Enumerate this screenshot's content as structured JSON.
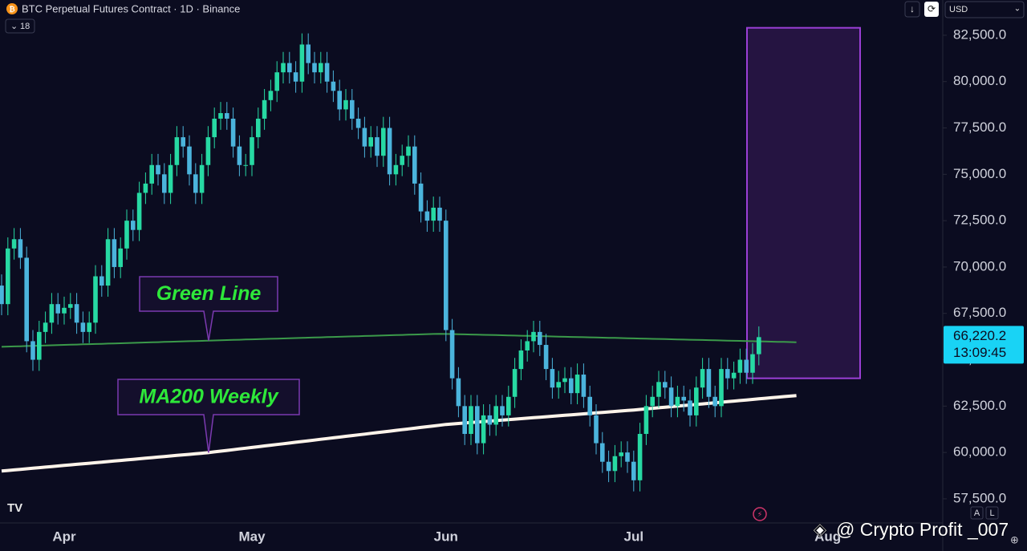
{
  "chart_data": {
    "type": "candlestick",
    "title": "BTC Perpetual Futures Contract · 1D · Binance",
    "interval_badge": "18",
    "currency": "USD",
    "watermark": "@ Crypto Profit _007",
    "scale_buttons": [
      "A",
      "L"
    ],
    "categories": [
      null,
      null,
      null,
      null,
      null,
      null,
      null,
      null,
      null,
      null,
      "Apr",
      null,
      null,
      null,
      null,
      null,
      null,
      null,
      null,
      null,
      null,
      null,
      null,
      null,
      null,
      null,
      null,
      null,
      null,
      null,
      null,
      null,
      null,
      null,
      null,
      null,
      null,
      null,
      null,
      null,
      "May",
      null,
      null,
      null,
      null,
      null,
      null,
      null,
      null,
      null,
      null,
      null,
      null,
      null,
      null,
      null,
      null,
      null,
      null,
      null,
      null,
      null,
      null,
      null,
      null,
      null,
      null,
      null,
      null,
      null,
      null,
      "Jun",
      null,
      null,
      null,
      null,
      null,
      null,
      null,
      null,
      null,
      null,
      null,
      null,
      null,
      null,
      null,
      null,
      null,
      null,
      null,
      null,
      null,
      null,
      null,
      null,
      null,
      null,
      null,
      null,
      null,
      "Jul",
      null,
      null,
      null,
      null,
      null,
      null,
      null,
      null,
      null,
      null,
      null,
      null,
      null,
      null,
      null,
      null,
      null,
      null,
      null,
      null,
      null,
      null,
      null,
      null,
      null,
      null,
      null,
      null,
      null,
      null,
      "Aug"
    ],
    "ylim": [
      56200,
      84400
    ],
    "yticks": [
      {
        "value": 57500,
        "label": "57,500.0"
      },
      {
        "value": 60000,
        "label": "60,000.0"
      },
      {
        "value": 62500,
        "label": "62,500.0"
      },
      {
        "value": 65000,
        "label": "65,000.0"
      },
      {
        "value": 67500,
        "label": "67,500.0"
      },
      {
        "value": 70000,
        "label": "70,000.0"
      },
      {
        "value": 72500,
        "label": "72,500.0"
      },
      {
        "value": 75000,
        "label": "75,000.0"
      },
      {
        "value": 77500,
        "label": "77,500.0"
      },
      {
        "value": 80000,
        "label": "80,000.0"
      },
      {
        "value": 82500,
        "label": "82,500.0"
      }
    ],
    "up_color": "#27d9a3",
    "down_color": "#4bb4dc",
    "open": [
      69000,
      68000,
      71000,
      71500,
      70500,
      66000,
      65000,
      66500,
      67000,
      68000,
      67500,
      67800,
      68000,
      67000,
      66500,
      67000,
      69500,
      69000,
      71500,
      70000,
      71000,
      72500,
      72000,
      74000,
      74500,
      75500,
      75000,
      74000,
      75500,
      77000,
      76500,
      75000,
      74000,
      75500,
      77000,
      78000,
      78300,
      78000,
      76500,
      75500,
      75500,
      77000,
      78000,
      79000,
      79500,
      80500,
      81000,
      80500,
      80000,
      82000,
      81000,
      80500,
      81000,
      80000,
      79500,
      78500,
      79000,
      78000,
      77500,
      76500,
      77000,
      76000,
      77500,
      75000,
      75500,
      76000,
      76500,
      74500,
      73000,
      72500,
      73200,
      72500,
      66600,
      64000,
      62500,
      61000,
      62500,
      60500,
      62000,
      61500,
      62500,
      62000,
      63000,
      64500,
      65500,
      66000,
      66500,
      65800,
      64500,
      63500,
      63800,
      64000,
      63200,
      64200,
      63000,
      62000,
      60500,
      59500,
      59000,
      59800,
      60000,
      59500,
      58500,
      61000,
      62500,
      63000,
      63800,
      63500,
      62500,
      63000,
      62800,
      62000,
      63500,
      64500,
      63000,
      62500,
      64500,
      64000,
      64300,
      65000,
      64300,
      65300,
      null,
      null,
      null,
      null,
      null,
      null,
      null,
      null,
      null,
      null,
      null
    ],
    "high": [
      69600,
      71600,
      72100,
      72100,
      71100,
      66600,
      67100,
      67600,
      68600,
      68600,
      68400,
      68600,
      68600,
      67600,
      67600,
      70100,
      70100,
      72100,
      72100,
      71600,
      73100,
      73100,
      74600,
      75100,
      76100,
      76100,
      75600,
      76100,
      77600,
      77600,
      77100,
      75600,
      76100,
      77600,
      78600,
      78900,
      78900,
      78600,
      77100,
      76100,
      77600,
      78600,
      79600,
      80100,
      81100,
      81600,
      81600,
      81100,
      82600,
      82600,
      81600,
      81600,
      81600,
      80600,
      80100,
      79600,
      79600,
      78600,
      78100,
      77600,
      77600,
      78100,
      78100,
      76100,
      76600,
      77100,
      77100,
      75100,
      73600,
      73800,
      73800,
      73100,
      67200,
      64600,
      63100,
      63100,
      63100,
      62600,
      62600,
      63100,
      63100,
      63600,
      65100,
      66100,
      66600,
      67100,
      67100,
      66400,
      65100,
      64400,
      64600,
      64600,
      64800,
      64800,
      63600,
      62600,
      61100,
      60100,
      60400,
      60600,
      60600,
      60100,
      61600,
      63100,
      63600,
      64400,
      64400,
      64100,
      63600,
      63600,
      63400,
      64100,
      65100,
      65100,
      63600,
      65100,
      65100,
      64900,
      65600,
      65600,
      65900,
      66800,
      null,
      null,
      null,
      null,
      null,
      null,
      null,
      null,
      null,
      null,
      null
    ],
    "low": [
      67400,
      67400,
      70400,
      69900,
      65400,
      64400,
      64400,
      65900,
      66400,
      66900,
      66900,
      67200,
      66400,
      65900,
      65900,
      66400,
      68400,
      68400,
      69400,
      69400,
      70400,
      71400,
      71400,
      73400,
      73900,
      74400,
      73400,
      73400,
      74900,
      75900,
      74400,
      73400,
      73400,
      74900,
      76400,
      77400,
      77400,
      75900,
      74900,
      74900,
      74900,
      76400,
      77400,
      78400,
      78900,
      79900,
      79900,
      79400,
      79400,
      80400,
      79900,
      79900,
      79400,
      78900,
      77900,
      77900,
      77400,
      76900,
      75900,
      75900,
      75400,
      75400,
      74400,
      74400,
      74900,
      75400,
      73900,
      72400,
      71900,
      71900,
      71900,
      66000,
      63400,
      61900,
      60400,
      60400,
      59900,
      59900,
      60900,
      60900,
      61400,
      61400,
      62400,
      63900,
      64900,
      65400,
      65200,
      63900,
      62900,
      62900,
      63200,
      62600,
      62600,
      62400,
      61400,
      59900,
      58900,
      58400,
      58400,
      59200,
      58900,
      57900,
      57900,
      60400,
      61900,
      62400,
      62900,
      61900,
      61900,
      62200,
      61400,
      61400,
      62900,
      62400,
      61900,
      61900,
      63400,
      63400,
      63700,
      63700,
      63700,
      64700,
      null,
      null,
      null,
      null,
      null,
      null,
      null,
      null,
      null,
      null,
      null
    ],
    "close": [
      68000,
      71000,
      71500,
      70500,
      66000,
      65000,
      66500,
      67000,
      68000,
      67500,
      67800,
      68000,
      67000,
      66500,
      67000,
      69500,
      69000,
      71500,
      70000,
      71000,
      72500,
      72000,
      74000,
      74500,
      75500,
      75000,
      74000,
      75500,
      77000,
      76500,
      75000,
      74000,
      75500,
      77000,
      78000,
      78300,
      78000,
      76500,
      75500,
      75500,
      77000,
      78000,
      79000,
      79500,
      80500,
      81000,
      80500,
      80000,
      82000,
      81000,
      80500,
      81000,
      80000,
      79500,
      78500,
      79000,
      78000,
      77500,
      76500,
      77000,
      76000,
      77500,
      75000,
      75500,
      76000,
      76500,
      74500,
      73000,
      72500,
      73200,
      72500,
      66600,
      64000,
      62500,
      61000,
      62500,
      60500,
      62000,
      61500,
      62500,
      62000,
      63000,
      64500,
      65500,
      66000,
      66500,
      65800,
      64500,
      63500,
      63800,
      64000,
      63200,
      64200,
      63000,
      62000,
      60500,
      59500,
      59000,
      59800,
      60000,
      59500,
      58500,
      61000,
      62500,
      63000,
      63800,
      63500,
      62500,
      63000,
      62800,
      62000,
      63500,
      64500,
      63000,
      62500,
      64500,
      64000,
      64300,
      65000,
      64300,
      65300,
      66220.2,
      null,
      null,
      null,
      null,
      null,
      null,
      null,
      null,
      null,
      null,
      null
    ],
    "lines": [
      {
        "name": "Green Line",
        "color": "#3b9a4a",
        "width": 2,
        "values": [
          65700,
          65710,
          65720,
          65730,
          65740,
          65750,
          65760,
          65770,
          65780,
          65790,
          65800,
          65810,
          65820,
          65830,
          65840,
          65850,
          65860,
          65870,
          65880,
          65890,
          65900,
          65910,
          65920,
          65930,
          65940,
          65950,
          65960,
          65970,
          65980,
          65990,
          66000,
          66010,
          66020,
          66030,
          66040,
          66050,
          66060,
          66070,
          66080,
          66090,
          66100,
          66110,
          66120,
          66130,
          66140,
          66150,
          66160,
          66170,
          66180,
          66190,
          66200,
          66210,
          66220,
          66230,
          66240,
          66250,
          66260,
          66270,
          66280,
          66290,
          66300,
          66310,
          66320,
          66330,
          66340,
          66350,
          66360,
          66370,
          66380,
          66390,
          66400,
          66392,
          66384,
          66376,
          66368,
          66360,
          66352,
          66344,
          66336,
          66328,
          66320,
          66312,
          66304,
          66296,
          66288,
          66280,
          66272,
          66264,
          66256,
          66248,
          66240,
          66232,
          66224,
          66216,
          66208,
          66200,
          66192,
          66184,
          66176,
          66168,
          66160,
          66152,
          66144,
          66136,
          66128,
          66120,
          66112,
          66104,
          66096,
          66088,
          66080,
          66072,
          66064,
          66056,
          66048,
          66040,
          66032,
          66024,
          66016,
          66008,
          66000,
          65992,
          65984,
          65976,
          65968,
          65960,
          65952,
          65944,
          null,
          null,
          null,
          null,
          null
        ]
      },
      {
        "name": "MA200 Weekly",
        "color": "#fff4ea",
        "width": 4,
        "values": [
          59000,
          59030,
          59060,
          59090,
          59120,
          59150,
          59180,
          59210,
          59240,
          59270,
          59300,
          59330,
          59360,
          59390,
          59420,
          59450,
          59480,
          59510,
          59540,
          59570,
          59600,
          59630,
          59660,
          59690,
          59720,
          59750,
          59780,
          59810,
          59840,
          59870,
          59900,
          59930,
          59960,
          59990,
          60030,
          60070,
          60110,
          60150,
          60190,
          60230,
          60270,
          60310,
          60350,
          60390,
          60430,
          60470,
          60510,
          60550,
          60590,
          60630,
          60670,
          60710,
          60750,
          60790,
          60830,
          60870,
          60910,
          60950,
          60990,
          61030,
          61070,
          61110,
          61150,
          61190,
          61230,
          61270,
          61310,
          61350,
          61390,
          61430,
          61470,
          61510,
          61536,
          61562,
          61588,
          61614,
          61640,
          61666,
          61692,
          61718,
          61744,
          61770,
          61796,
          61822,
          61848,
          61874,
          61900,
          61926,
          61952,
          61978,
          62004,
          62030,
          62056,
          62082,
          62108,
          62134,
          62160,
          62186,
          62212,
          62238,
          62264,
          62290,
          62320,
          62350,
          62380,
          62410,
          62440,
          62470,
          62500,
          62530,
          62560,
          62590,
          62620,
          62650,
          62680,
          62710,
          62740,
          62770,
          62800,
          62830,
          62860,
          62890,
          62920,
          62950,
          62980,
          63010,
          63040,
          63070,
          null,
          null,
          null,
          null,
          null
        ]
      }
    ],
    "zone": {
      "top": 82900,
      "bottom": 64000,
      "color": "#9b3fd6"
    },
    "price_tag": {
      "value": 66220.2,
      "label": "66,220.2",
      "countdown": "13:09:45",
      "color": "#19d3f5"
    }
  }
}
